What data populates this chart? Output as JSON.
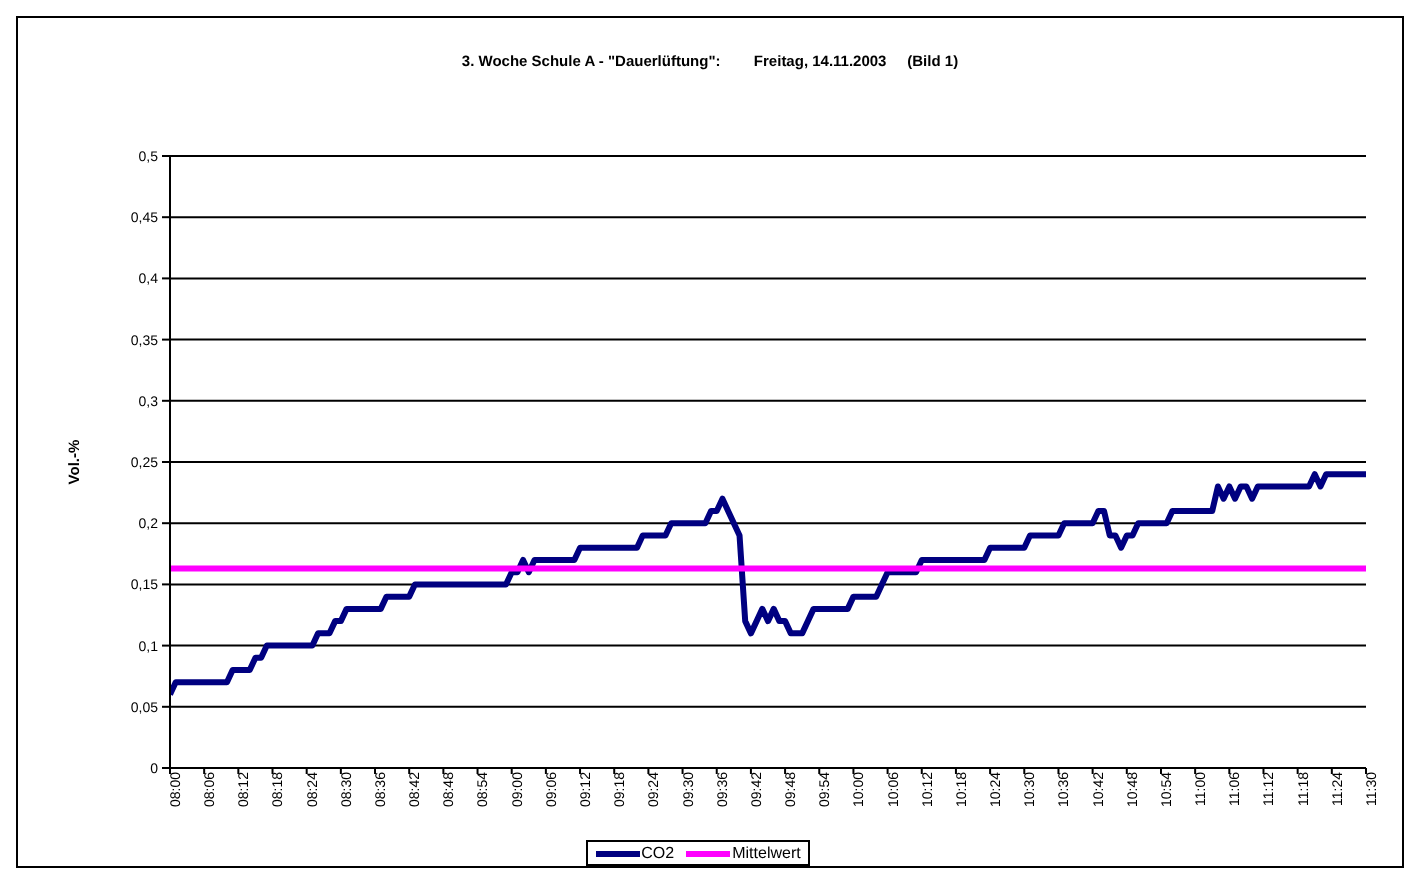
{
  "chart_data": {
    "type": "line",
    "title": "3. Woche Schule A - \"Dauerlüftung\":        Freitag, 14.11.2003     (Bild 1)",
    "ylabel": "Vol.-%",
    "xlim": [
      8,
      11.5
    ],
    "xticks": [
      {
        "value": 8,
        "label": "08:00"
      },
      {
        "value": 8.1,
        "label": "08:06"
      },
      {
        "value": 8.2,
        "label": "08:12"
      },
      {
        "value": 8.3,
        "label": "08:18"
      },
      {
        "value": 8.4,
        "label": "08:24"
      },
      {
        "value": 8.5,
        "label": "08:30"
      },
      {
        "value": 8.6,
        "label": "08:36"
      },
      {
        "value": 8.7,
        "label": "08:42"
      },
      {
        "value": 8.8,
        "label": "08:48"
      },
      {
        "value": 8.9,
        "label": "08:54"
      },
      {
        "value": 9,
        "label": "09:00"
      },
      {
        "value": 9.1,
        "label": "09:06"
      },
      {
        "value": 9.2,
        "label": "09:12"
      },
      {
        "value": 9.3,
        "label": "09:18"
      },
      {
        "value": 9.4,
        "label": "09:24"
      },
      {
        "value": 9.5,
        "label": "09:30"
      },
      {
        "value": 9.6,
        "label": "09:36"
      },
      {
        "value": 9.7,
        "label": "09:42"
      },
      {
        "value": 9.8,
        "label": "09:48"
      },
      {
        "value": 9.9,
        "label": "09:54"
      },
      {
        "value": 10,
        "label": "10:00"
      },
      {
        "value": 10.1,
        "label": "10:06"
      },
      {
        "value": 10.2,
        "label": "10:12"
      },
      {
        "value": 10.3,
        "label": "10:18"
      },
      {
        "value": 10.4,
        "label": "10:24"
      },
      {
        "value": 10.5,
        "label": "10:30"
      },
      {
        "value": 10.6,
        "label": "10:36"
      },
      {
        "value": 10.7,
        "label": "10:42"
      },
      {
        "value": 10.8,
        "label": "10:48"
      },
      {
        "value": 10.9,
        "label": "10:54"
      },
      {
        "value": 11,
        "label": "11:00"
      },
      {
        "value": 11.1,
        "label": "11:06"
      },
      {
        "value": 11.2,
        "label": "11:12"
      },
      {
        "value": 11.3,
        "label": "11:18"
      },
      {
        "value": 11.4,
        "label": "11:24"
      },
      {
        "value": 11.5,
        "label": "11:30"
      }
    ],
    "ylim": [
      0,
      0.5
    ],
    "yticks": [
      0,
      {
        "value": 0.05,
        "label": "0,05"
      },
      {
        "value": 0.1,
        "label": "0,1"
      },
      {
        "value": 0.15,
        "label": "0,15"
      },
      {
        "value": 0.2,
        "label": "0,2"
      },
      {
        "value": 0.25,
        "label": "0,25"
      },
      {
        "value": 0.3,
        "label": "0,3"
      },
      {
        "value": 0.35,
        "label": "0,35"
      },
      {
        "value": 0.4,
        "label": "0,4"
      },
      {
        "value": 0.45,
        "label": "0,45"
      },
      {
        "value": 0.5,
        "label": "0,5"
      }
    ],
    "grid": "y",
    "legend": "bottom",
    "marker": "none",
    "line_style": "solid",
    "series": [
      {
        "name": "CO2",
        "color": "#000080",
        "x": [
          8,
          8.0167,
          8.1667,
          8.1833,
          8.2333,
          8.25,
          8.2667,
          8.2833,
          8.4167,
          8.4333,
          8.4667,
          8.4833,
          8.5,
          8.5167,
          8.6167,
          8.6333,
          8.7,
          8.7167,
          8.9833,
          9,
          9.0167,
          9.0333,
          9.05,
          9.0667,
          9.1833,
          9.2,
          9.3667,
          9.3833,
          9.45,
          9.4667,
          9.5667,
          9.5833,
          9.6,
          9.6167,
          9.6333,
          9.65,
          9.6667,
          9.6833,
          9.7,
          9.7167,
          9.7333,
          9.75,
          9.7667,
          9.7833,
          9.8,
          9.8167,
          9.85,
          9.8667,
          9.8833,
          9.9833,
          10,
          10.0667,
          10.0833,
          10.1,
          10.1833,
          10.2,
          10.3833,
          10.4,
          10.5,
          10.5167,
          10.6,
          10.6167,
          10.7,
          10.7167,
          10.7333,
          10.75,
          10.7667,
          10.7833,
          10.8,
          10.8167,
          10.8333,
          10.9167,
          10.9333,
          11.05,
          11.0667,
          11.0833,
          11.1,
          11.1167,
          11.1333,
          11.15,
          11.1667,
          11.1833,
          11.3333,
          11.35,
          11.3667,
          11.3833,
          11.5
        ],
        "values": [
          0.06,
          0.07,
          0.07,
          0.08,
          0.08,
          0.09,
          0.09,
          0.1,
          0.1,
          0.11,
          0.11,
          0.12,
          0.12,
          0.13,
          0.13,
          0.14,
          0.14,
          0.15,
          0.15,
          0.16,
          0.16,
          0.17,
          0.16,
          0.17,
          0.17,
          0.18,
          0.18,
          0.19,
          0.19,
          0.2,
          0.2,
          0.21,
          0.21,
          0.22,
          0.21,
          0.2,
          0.19,
          0.12,
          0.11,
          0.12,
          0.13,
          0.12,
          0.13,
          0.12,
          0.12,
          0.11,
          0.11,
          0.12,
          0.13,
          0.13,
          0.14,
          0.14,
          0.15,
          0.16,
          0.16,
          0.17,
          0.17,
          0.18,
          0.18,
          0.19,
          0.19,
          0.2,
          0.2,
          0.21,
          0.21,
          0.19,
          0.19,
          0.18,
          0.19,
          0.19,
          0.2,
          0.2,
          0.21,
          0.21,
          0.23,
          0.22,
          0.23,
          0.22,
          0.23,
          0.23,
          0.22,
          0.23,
          0.23,
          0.24,
          0.23,
          0.24,
          0.24
        ]
      },
      {
        "name": "Mittelwert",
        "color": "#ff00ff",
        "x": [
          8,
          11.5
        ],
        "values": [
          0.163,
          0.163
        ]
      }
    ]
  }
}
